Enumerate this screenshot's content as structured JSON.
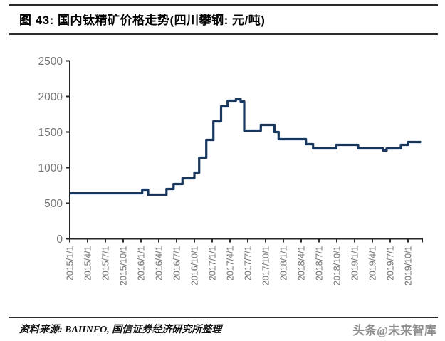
{
  "header": {
    "title": "图 43:  国内钛精矿价格走势(四川攀钢: 元/吨)"
  },
  "footer": {
    "source": "资料来源: BAIINFO, 国信证券经济研究所整理",
    "watermark": "头条@未来智库"
  },
  "chart_data": {
    "type": "line",
    "step": true,
    "title": "国内钛精矿价格走势(四川攀钢: 元/吨)",
    "ylabel": "",
    "xlabel": "",
    "unit": "元/吨",
    "ylim": [
      0,
      2500
    ],
    "yticks": [
      0,
      500,
      1000,
      1500,
      2000,
      2500
    ],
    "x_tick_labels": [
      "2015/1/1",
      "2015/4/1",
      "2015/7/1",
      "2015/10/1",
      "2016/1/1",
      "2016/4/1",
      "2016/7/1",
      "2016/10/1",
      "2017/1/1",
      "2017/4/1",
      "2017/7/1",
      "2017/10/1",
      "2018/1/1",
      "2018/4/1",
      "2018/7/1",
      "2018/10/1",
      "2019/1/1",
      "2019/4/1",
      "2019/7/1",
      "2019/10/1"
    ],
    "months_per_tick": 3,
    "grid": false,
    "legend_position": "none",
    "colors": {
      "line": "#17375E",
      "axis": "#262626",
      "tick_label": "#757575"
    },
    "series": [
      {
        "name": "钛精矿价格(四川攀钢)",
        "color": "#17375E",
        "step_points_month_value": [
          [
            0.0,
            640
          ],
          [
            12.2,
            690
          ],
          [
            13.2,
            620
          ],
          [
            16.3,
            700
          ],
          [
            17.5,
            770
          ],
          [
            19.0,
            850
          ],
          [
            21.0,
            930
          ],
          [
            21.8,
            1140
          ],
          [
            23.0,
            1390
          ],
          [
            24.2,
            1650
          ],
          [
            25.5,
            1860
          ],
          [
            26.6,
            1940
          ],
          [
            28.0,
            1960
          ],
          [
            28.8,
            1930
          ],
          [
            29.4,
            1520
          ],
          [
            32.2,
            1600
          ],
          [
            34.5,
            1500
          ],
          [
            35.2,
            1400
          ],
          [
            39.8,
            1330
          ],
          [
            41.0,
            1270
          ],
          [
            44.9,
            1320
          ],
          [
            48.6,
            1270
          ],
          [
            52.8,
            1240
          ],
          [
            53.4,
            1270
          ],
          [
            55.8,
            1320
          ],
          [
            57.0,
            1360
          ]
        ],
        "end_month": 59.2
      }
    ]
  }
}
